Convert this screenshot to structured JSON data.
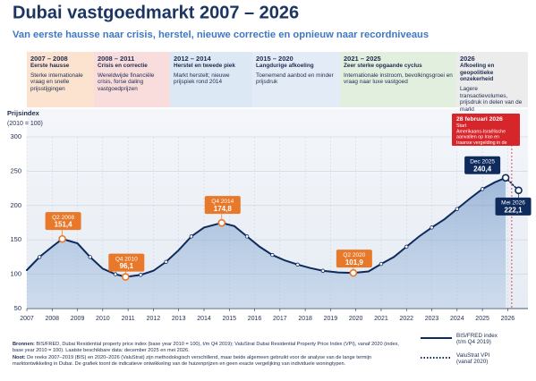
{
  "chart_data": {
    "type": "line",
    "title": "Dubai vastgoedmarkt 2007 – 2026",
    "subtitle": "Van eerste hausse naar crisis, herstel, nieuwe correctie en opnieuw naar recordniveaus",
    "y_label": "Prijsindex",
    "y_label_sub": "(2010 = 100)",
    "periods": [
      {
        "years": "2007 – 2008",
        "heading": "Eerste hausse",
        "text": "Sterke internationale vraag en snelle prijsstijgingen",
        "color": "#fbe3cf"
      },
      {
        "years": "2008 – 2011",
        "heading": "Crisis en correctie",
        "text": "Wereldwijde financiële crisis, forse daling vastgoedprijzen",
        "color": "#f9dcdc"
      },
      {
        "years": "2012 – 2014",
        "heading": "Herstel en tweede piek",
        "text": "Markt herstelt; nieuwe prijspiek rond 2014",
        "color": "#dde8f5"
      },
      {
        "years": "2015 – 2020",
        "heading": "Langdurige afkoeling",
        "text": "Toenemend aanbod en minder prijsdruk",
        "color": "#e3ecf6"
      },
      {
        "years": "2021 – 2025",
        "heading": "Zeer sterke opgaande cyclus",
        "text": "Internationale instroom, bevolkingsgroei en vraag naar luxe vastgoed",
        "color": "#e2efdf"
      },
      {
        "years": "2026",
        "heading": "Afkoeling en geopolitieke onzekerheid",
        "text": "Lagere transactievolumes, prijsdruk in delen van de markt",
        "color": "#ececec"
      }
    ],
    "x": [
      2007,
      2007.5,
      2008,
      2008.4,
      2009,
      2009.5,
      2010,
      2010.5,
      2010.9,
      2011.5,
      2012,
      2012.5,
      2013,
      2013.5,
      2014,
      2014.7,
      2015.2,
      2015.7,
      2016.2,
      2016.7,
      2017.2,
      2017.7,
      2018.2,
      2018.7,
      2019.3,
      2019.9,
      2020.5,
      2021,
      2021.5,
      2022,
      2022.5,
      2023,
      2023.5,
      2024,
      2024.5,
      2025,
      2025.5,
      2025.92,
      2026.43
    ],
    "series": [
      {
        "name": "BIS/FRED index (t/m Q4 2019)",
        "color": "#0f2a5c",
        "style": "solid",
        "values": [
          106,
          125,
          140,
          151.4,
          145,
          125,
          108,
          100,
          96.1,
          99,
          105,
          118,
          135,
          155,
          168,
          174.8,
          170,
          155,
          140,
          128,
          120,
          114,
          109,
          105,
          102.5,
          101.9,
          104,
          115,
          125,
          140,
          155,
          168,
          180,
          195,
          210,
          224,
          234,
          240.4,
          null
        ]
      },
      {
        "name": "ValuStrat VPI (vanaf 2020)",
        "color": "#0f2a5c",
        "style": "dotted",
        "values": [
          null,
          null,
          null,
          null,
          null,
          null,
          null,
          null,
          null,
          null,
          null,
          null,
          null,
          null,
          null,
          null,
          null,
          null,
          null,
          null,
          null,
          null,
          null,
          null,
          null,
          null,
          null,
          null,
          null,
          null,
          null,
          null,
          null,
          null,
          null,
          null,
          null,
          240.4,
          222.1
        ]
      }
    ],
    "callouts": [
      {
        "label": "Q2 2008",
        "x": 2008.4,
        "value": 151.4,
        "value_label": "151,4",
        "color": "#e8782a",
        "position": "above"
      },
      {
        "label": "Q4 2010",
        "x": 2010.9,
        "value": 96.1,
        "value_label": "96,1",
        "color": "#e8782a",
        "position": "above"
      },
      {
        "label": "Q4 2014",
        "x": 2014.7,
        "value": 174.8,
        "value_label": "174,8",
        "color": "#e8782a",
        "position": "above"
      },
      {
        "label": "Q2 2020",
        "x": 2019.9,
        "value": 101.9,
        "value_label": "101,9",
        "color": "#e8782a",
        "position": "above"
      },
      {
        "label": "Dec 2025",
        "x": 2025.92,
        "value": 240.4,
        "value_label": "240,4",
        "color": "#0f2a5c",
        "position": "left"
      },
      {
        "label": "Mei 2026",
        "x": 2026.43,
        "value": 222.1,
        "value_label": "222,1",
        "color": "#0f2a5c",
        "position": "below"
      }
    ],
    "event": {
      "date": "28 februari 2026",
      "text": "Start Amerikaans-Israëlische aanvallen op Iran en Iraanse vergelding in de Golfregio",
      "x": 2026.16,
      "color": "#d7262b"
    },
    "xlim": [
      2007,
      2026.8
    ],
    "xticks": [
      2007,
      2008,
      2009,
      2010,
      2011,
      2012,
      2013,
      2014,
      2015,
      2016,
      2017,
      2018,
      2019,
      2020,
      2021,
      2022,
      2023,
      2024,
      2025,
      2026
    ],
    "ylim": [
      50,
      300
    ],
    "yticks": [
      50,
      100,
      150,
      200,
      250,
      300
    ],
    "grid": true
  },
  "footer": {
    "sources_label": "Bronnen:",
    "sources": "BIS/FRED, Dubai Residential property price index (base year 2010 = 100), t/m Q4 2019); ValuStrat Dubai Residential Property Price Index (VPI), vanaf 2020 (index, base year 2010 = 100). Laatste beschikbare data: december 2025 en mei 2026.",
    "note_label": "Noot:",
    "note": "De reeks 2007–2019 (BIS) en 2020–2026 (ValuStrat) zijn methodologisch verschillend, maar beide algemeen gebruikt voor de analyse van de lange termijn marktontwikkeling in Dubai. De grafiek toont de indicatieve ontwikkeling van de huizenprijzen en geen exacte vergelijking van individuele woningtypen."
  }
}
